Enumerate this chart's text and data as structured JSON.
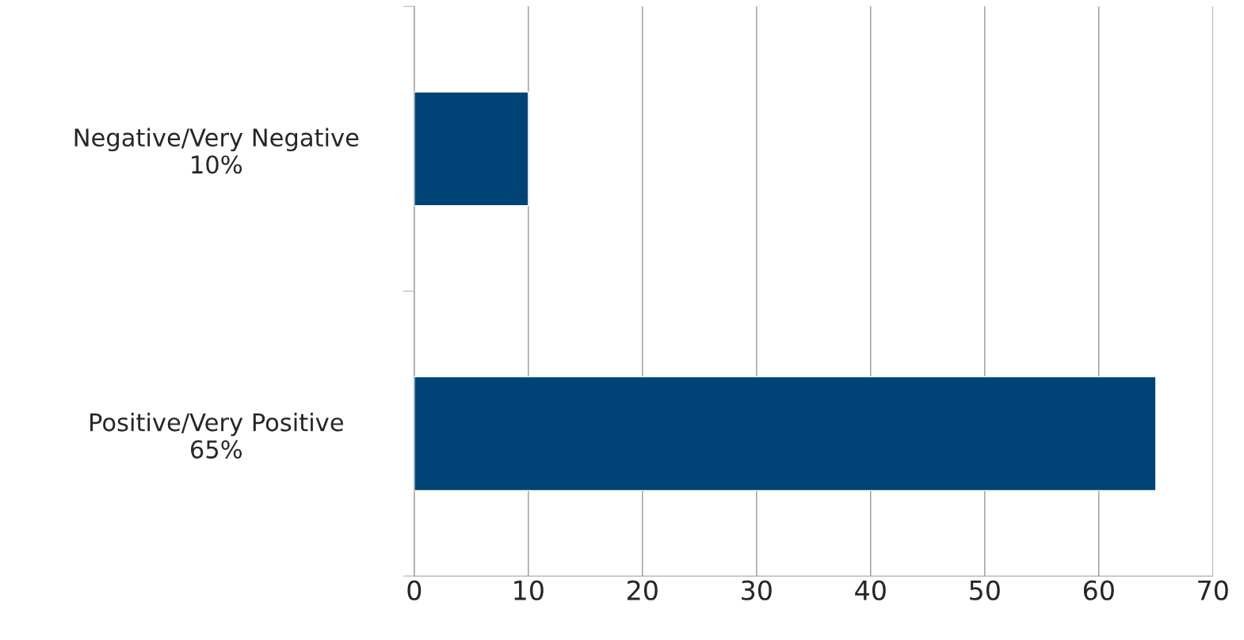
{
  "chart_data": {
    "type": "bar",
    "orientation": "horizontal",
    "categories": [
      "Negative/Very Negative\n10%",
      "Positive/Very Positive\n65%"
    ],
    "values": [
      10,
      65
    ],
    "color": "#004477",
    "xlim": [
      0,
      70
    ],
    "xticks": [
      0,
      10,
      20,
      30,
      40,
      50,
      60,
      70
    ],
    "grid": "x",
    "legend": false
  }
}
